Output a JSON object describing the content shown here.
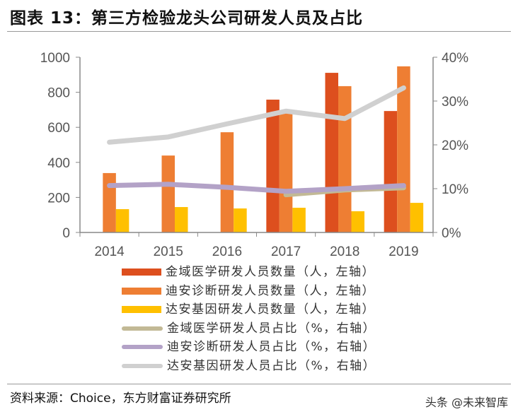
{
  "title": "图表 13：第三方检验龙头公司研发人员及占比",
  "source": "资料来源：Choice，东方财富证券研究所",
  "watermark": "头条 @未来智库",
  "chart_data": {
    "type": "bar+line",
    "categories": [
      "2014",
      "2015",
      "2016",
      "2017",
      "2018",
      "2019"
    ],
    "y_left": {
      "range": [
        0,
        1000
      ],
      "ticks": [
        "0",
        "200",
        "400",
        "600",
        "800",
        "1000"
      ]
    },
    "y_right": {
      "range": [
        0,
        40
      ],
      "ticks": [
        "0%",
        "10%",
        "20%",
        "30%",
        "40%"
      ]
    },
    "grid": false,
    "legend_placement": "bottom",
    "bar_series": [
      {
        "name": "金域医学研发人员数量（人，左轴）",
        "color": "#DD4F1E",
        "values": [
          null,
          null,
          null,
          758,
          911,
          693
        ]
      },
      {
        "name": "迪安诊断研发人员数量（人，左轴）",
        "color": "#EE7E33",
        "values": [
          339,
          439,
          572,
          685,
          835,
          948
        ]
      },
      {
        "name": "达安基因研发人员数量（人，左轴）",
        "color": "#FFC000",
        "values": [
          133,
          145,
          137,
          141,
          121,
          169
        ]
      }
    ],
    "line_series": [
      {
        "name": "金域医学研发人员占比（%，右轴）",
        "color": "#C2B995",
        "values": [
          null,
          null,
          null,
          8.6,
          9.7,
          10.2
        ]
      },
      {
        "name": "迪安诊断研发人员占比（%，右轴）",
        "color": "#B3A2C7",
        "values": [
          10.7,
          11.0,
          10.3,
          9.4,
          10.0,
          10.7
        ]
      },
      {
        "name": "达安基因研发人员占比（%，右轴）",
        "color": "#D0D0D0",
        "values": [
          20.6,
          21.8,
          24.8,
          27.7,
          26.0,
          33.0
        ]
      }
    ]
  }
}
